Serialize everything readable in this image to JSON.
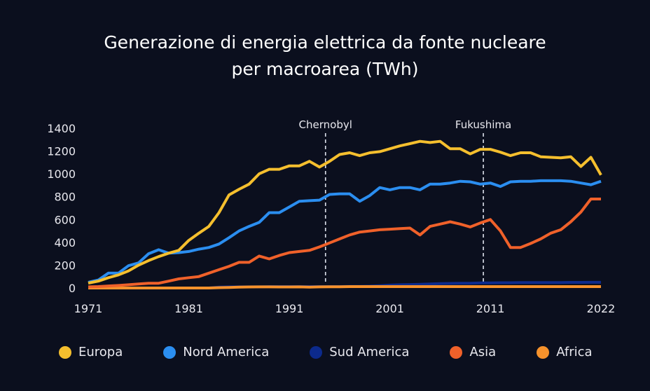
{
  "chart_data": {
    "type": "line",
    "title": [
      "Generazione di energia elettrica da fonte nucleare",
      "per macroarea (TWh)"
    ],
    "xlabel": "",
    "ylabel": "",
    "xlim": [
      1971,
      2022
    ],
    "ylim": [
      0,
      1400
    ],
    "yticks": [
      0,
      200,
      400,
      600,
      800,
      1000,
      1200,
      1400
    ],
    "xticks": [
      1971,
      1981,
      1991,
      2001,
      2011,
      2022
    ],
    "grid": false,
    "legend_position": "bottom",
    "events": [
      {
        "label": "Chernobyl",
        "x": 1994.6
      },
      {
        "label": "Fukushima",
        "x": 2010.3
      }
    ],
    "years": [
      1971,
      1972,
      1973,
      1974,
      1975,
      1976,
      1977,
      1978,
      1979,
      1980,
      1981,
      1982,
      1983,
      1984,
      1985,
      1986,
      1987,
      1988,
      1989,
      1990,
      1991,
      1992,
      1993,
      1994,
      1995,
      1996,
      1997,
      1998,
      1999,
      2000,
      2001,
      2002,
      2003,
      2004,
      2005,
      2006,
      2007,
      2008,
      2009,
      2010,
      2011,
      2012,
      2013,
      2014,
      2015,
      2016,
      2017,
      2018,
      2019,
      2020,
      2021,
      2022
    ],
    "series": [
      {
        "name": "Europa",
        "color": "#f5bf2e",
        "values": [
          43,
          60,
          90,
          115,
          150,
          200,
          240,
          275,
          305,
          330,
          417,
          480,
          540,
          660,
          815,
          865,
          910,
          1000,
          1040,
          1040,
          1070,
          1070,
          1110,
          1060,
          1110,
          1170,
          1185,
          1160,
          1185,
          1195,
          1220,
          1245,
          1265,
          1285,
          1275,
          1285,
          1220,
          1220,
          1175,
          1215,
          1215,
          1190,
          1160,
          1185,
          1185,
          1150,
          1145,
          1140,
          1150,
          1065,
          1145,
          990
        ]
      },
      {
        "name": "Nord America",
        "color": "#2b8ef0",
        "values": [
          50,
          70,
          130,
          130,
          195,
          220,
          300,
          335,
          305,
          310,
          320,
          340,
          355,
          385,
          440,
          500,
          540,
          575,
          660,
          660,
          710,
          760,
          765,
          770,
          820,
          825,
          825,
          760,
          810,
          880,
          860,
          880,
          880,
          860,
          910,
          910,
          920,
          935,
          930,
          910,
          920,
          890,
          930,
          935,
          935,
          940,
          940,
          940,
          935,
          920,
          905,
          935
        ]
      },
      {
        "name": "Sud America",
        "color": "#0c2a8c",
        "values": [
          0,
          0,
          0,
          0,
          0,
          0,
          0,
          0,
          0,
          0,
          0,
          0,
          0,
          8,
          10,
          10,
          10,
          10,
          12,
          12,
          12,
          12,
          12,
          12,
          12,
          12,
          14,
          14,
          16,
          20,
          25,
          28,
          30,
          32,
          35,
          38,
          40,
          42,
          42,
          44,
          45,
          46,
          46,
          47,
          47,
          48,
          48,
          48,
          49,
          49,
          50,
          50
        ]
      },
      {
        "name": "Asia",
        "color": "#f0612a",
        "values": [
          10,
          12,
          18,
          22,
          28,
          35,
          42,
          42,
          60,
          80,
          90,
          100,
          130,
          160,
          190,
          225,
          225,
          280,
          255,
          285,
          310,
          320,
          330,
          360,
          395,
          430,
          465,
          490,
          500,
          510,
          515,
          520,
          525,
          465,
          540,
          560,
          580,
          560,
          535,
          570,
          600,
          500,
          355,
          355,
          390,
          430,
          480,
          510,
          580,
          665,
          780,
          780
        ]
      },
      {
        "name": "Africa",
        "color": "#f6922c",
        "values": [
          0,
          0,
          0,
          0,
          0,
          0,
          0,
          0,
          0,
          0,
          0,
          0,
          0,
          3,
          5,
          8,
          9,
          10,
          10,
          9,
          9,
          10,
          8,
          10,
          11,
          11,
          12,
          12,
          12,
          12,
          12,
          12,
          12,
          12,
          12,
          12,
          12,
          12,
          12,
          12,
          12,
          12,
          12,
          12,
          12,
          12,
          12,
          12,
          12,
          12,
          12,
          12
        ]
      }
    ]
  }
}
